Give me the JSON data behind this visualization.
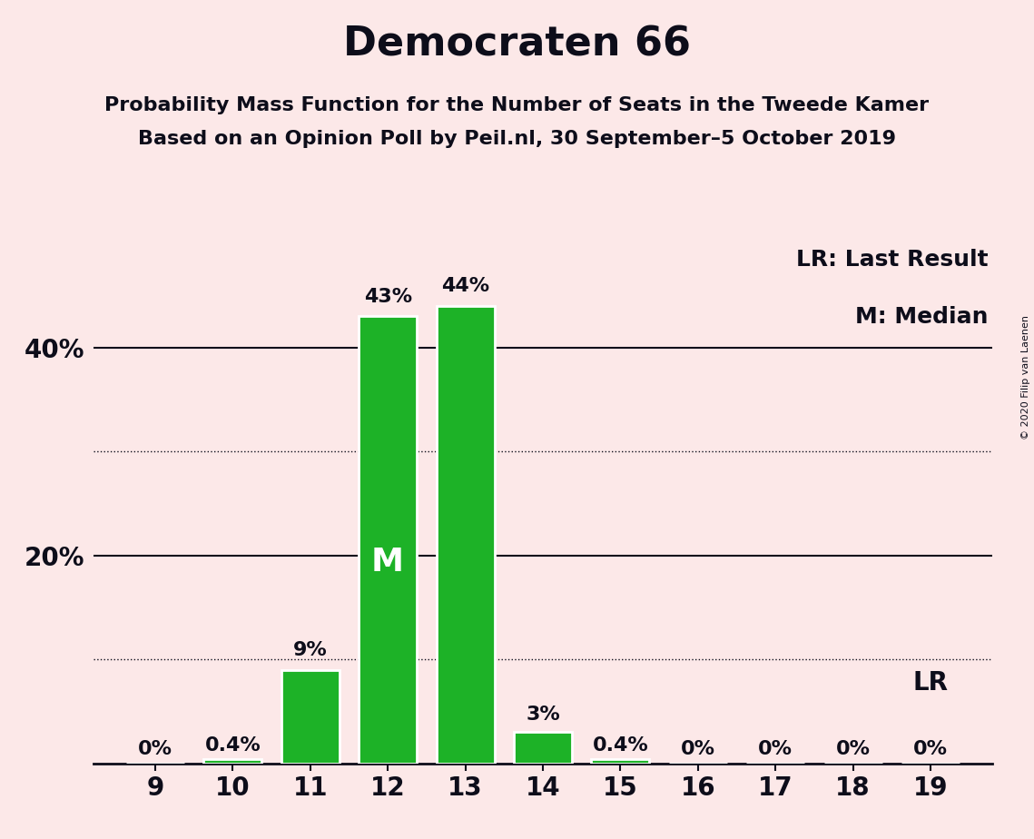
{
  "title": "Democraten 66",
  "subtitle1": "Probability Mass Function for the Number of Seats in the Tweede Kamer",
  "subtitle2": "Based on an Opinion Poll by Peil.nl, 30 September–5 October 2019",
  "copyright": "© 2020 Filip van Laenen",
  "legend_lr": "LR: Last Result",
  "legend_m": "M: Median",
  "seats": [
    9,
    10,
    11,
    12,
    13,
    14,
    15,
    16,
    17,
    18,
    19
  ],
  "probabilities": [
    0.0,
    0.4,
    9.0,
    43.0,
    44.0,
    3.0,
    0.4,
    0.0,
    0.0,
    0.0,
    0.0
  ],
  "labels": [
    "0%",
    "0.4%",
    "9%",
    "43%",
    "44%",
    "3%",
    "0.4%",
    "0%",
    "0%",
    "0%",
    "0%"
  ],
  "median_seat": 12,
  "last_result_seat": 19,
  "bar_color": "#1db227",
  "bar_edge_color": "#ffffff",
  "background_color": "#fce8e8",
  "text_color": "#0d0d1a",
  "median_label_color": "#ffffff",
  "ylim": [
    0,
    50
  ],
  "solid_lines": [
    20,
    40
  ],
  "dotted_lines": [
    10,
    30
  ],
  "ytick_positions": [
    20,
    40
  ],
  "ytick_labels": [
    "20%",
    "40%"
  ],
  "grid_color": "#0d0d1a",
  "title_fontsize": 32,
  "subtitle_fontsize": 16,
  "label_fontsize": 16,
  "tick_fontsize": 20,
  "legend_fontsize": 18,
  "median_fontsize": 26,
  "lr_fontsize": 20
}
